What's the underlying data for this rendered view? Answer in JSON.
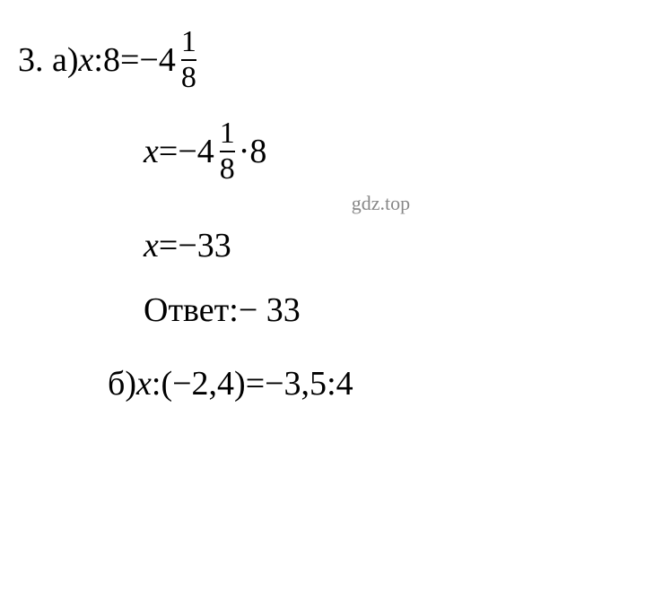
{
  "line1": {
    "prefix": "3. a) ",
    "var": "x",
    "colon": ":",
    "divisor": " 8 ",
    "equals": "=",
    "neg": " −4",
    "frac_num": "1",
    "frac_den": "8"
  },
  "line2": {
    "var": "x",
    "equals": " = ",
    "neg": "−4",
    "frac_num": "1",
    "frac_den": "8",
    "dot": " · ",
    "mult": "8"
  },
  "watermark": "gdz.top",
  "line3": {
    "var": "x",
    "equals": " = ",
    "result": "−33"
  },
  "line4": {
    "label": "Ответ: ",
    "value": " − 33"
  },
  "line5": {
    "prefix": "б) ",
    "var": "x",
    "colon": ":",
    "paren_open": " (",
    "val1": "−2,4",
    "paren_close": ") ",
    "equals": "=",
    "val2": " −3,5",
    "colon2": ":",
    "val3": " 4"
  },
  "colors": {
    "background": "#ffffff",
    "text": "#000000",
    "watermark": "#888888"
  },
  "typography": {
    "font_family": "Times New Roman",
    "main_fontsize": 38,
    "fraction_fontsize": 34,
    "watermark_fontsize": 22
  }
}
